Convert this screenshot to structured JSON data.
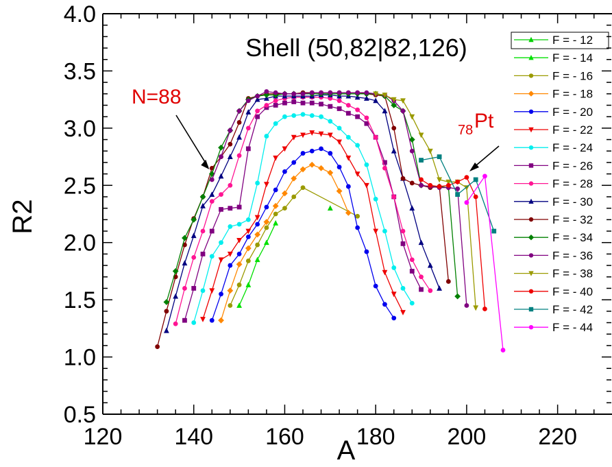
{
  "chart_data": {
    "type": "line",
    "title": "Shell (50,82|82,126)",
    "xlabel": "A",
    "ylabel": "R2",
    "xlim": [
      120,
      230
    ],
    "ylim": [
      0.5,
      4.0
    ],
    "xticks": [
      120,
      140,
      160,
      180,
      200,
      220
    ],
    "yticks": [
      0.5,
      1.0,
      1.5,
      2.0,
      2.5,
      3.0,
      3.5,
      4.0
    ],
    "xtick_labels": [
      "120",
      "140",
      "160",
      "180",
      "200",
      "220"
    ],
    "ytick_labels": [
      "0.5",
      "1.0",
      "1.5",
      "2.0",
      "2.5",
      "3.0",
      "3.5",
      "4.0"
    ],
    "legend_position": "right",
    "grid": false,
    "annotations": [
      {
        "text": "N=88",
        "color": "#e00000",
        "arrow_to": [
          144,
          2.58
        ]
      },
      {
        "text_sub": "78",
        "text": "Pt",
        "color": "#e00000",
        "arrow_to": [
          197,
          2.53
        ]
      }
    ],
    "series": [
      {
        "name": "F = - 12",
        "color": "#00d000",
        "marker": "triangle-up",
        "x": [
          170
        ],
        "y": [
          2.3
        ]
      },
      {
        "name": "F = - 14",
        "color": "#00e000",
        "marker": "triangle-up",
        "x": [
          150,
          152,
          154,
          156,
          158
        ],
        "y": [
          1.45,
          1.63,
          1.85,
          2.0,
          2.17
        ]
      },
      {
        "name": "F = - 16",
        "color": "#9a9a00",
        "marker": "circle",
        "x": [
          148,
          150,
          152,
          154,
          156,
          158,
          160,
          162,
          164,
          176
        ],
        "y": [
          1.45,
          1.63,
          1.84,
          1.98,
          2.13,
          2.25,
          2.3,
          2.4,
          2.48,
          2.23
        ]
      },
      {
        "name": "F = - 18",
        "color": "#ff8800",
        "marker": "diamond",
        "x": [
          146,
          148,
          150,
          152,
          154,
          156,
          158,
          160,
          162,
          164,
          166,
          168,
          170,
          172,
          174
        ],
        "y": [
          1.32,
          1.58,
          1.81,
          1.95,
          2.07,
          2.18,
          2.32,
          2.43,
          2.56,
          2.64,
          2.68,
          2.65,
          2.61,
          2.45,
          2.26
        ]
      },
      {
        "name": "F = - 20",
        "color": "#0000ee",
        "marker": "circle",
        "x": [
          144,
          146,
          148,
          150,
          152,
          154,
          156,
          158,
          160,
          162,
          164,
          166,
          168,
          170,
          172,
          174,
          176,
          178,
          180,
          182,
          184
        ],
        "y": [
          1.32,
          1.55,
          1.8,
          1.9,
          2.05,
          2.16,
          2.31,
          2.46,
          2.62,
          2.7,
          2.78,
          2.8,
          2.82,
          2.78,
          2.66,
          2.49,
          2.13,
          1.92,
          1.62,
          1.46,
          1.34
        ]
      },
      {
        "name": "F = - 22",
        "color": "#ee0000",
        "marker": "triangle-down",
        "x": [
          142,
          144,
          146,
          148,
          150,
          152,
          154,
          156,
          158,
          160,
          162,
          164,
          166,
          168,
          170,
          172,
          174,
          176,
          178,
          180,
          182,
          184,
          186
        ],
        "y": [
          1.33,
          1.58,
          1.85,
          1.9,
          2.02,
          2.1,
          2.22,
          2.51,
          2.74,
          2.82,
          2.92,
          2.94,
          2.96,
          2.95,
          2.94,
          2.88,
          2.74,
          2.6,
          2.5,
          2.1,
          1.74,
          1.55,
          1.39
        ]
      },
      {
        "name": "F = - 24",
        "color": "#00eeee",
        "marker": "circle",
        "x": [
          140,
          142,
          144,
          146,
          148,
          150,
          152,
          154,
          156,
          158,
          160,
          162,
          164,
          166,
          168,
          170,
          172,
          174,
          176,
          178,
          180,
          182,
          184,
          186,
          188
        ],
        "y": [
          1.3,
          1.58,
          1.88,
          2.0,
          2.14,
          2.16,
          2.2,
          2.52,
          2.93,
          3.04,
          3.1,
          3.11,
          3.12,
          3.11,
          3.1,
          3.06,
          3.0,
          2.92,
          2.85,
          2.68,
          2.38,
          2.1,
          1.78,
          1.6,
          1.47
        ]
      },
      {
        "name": "F = - 26",
        "color": "#800080",
        "marker": "square",
        "x": [
          138,
          140,
          142,
          144,
          146,
          148,
          150,
          152,
          154,
          156,
          158,
          160,
          162,
          164,
          166,
          168,
          170,
          172,
          174,
          176,
          178,
          180,
          182,
          184,
          186,
          188,
          190
        ],
        "y": [
          1.32,
          1.6,
          1.9,
          2.1,
          2.29,
          2.3,
          2.31,
          2.82,
          3.1,
          3.18,
          3.2,
          3.22,
          3.23,
          3.22,
          3.22,
          3.21,
          3.19,
          3.17,
          3.13,
          3.1,
          3.04,
          2.92,
          2.7,
          2.4,
          1.99,
          1.75,
          1.59
        ]
      },
      {
        "name": "F = - 28",
        "color": "#ff1493",
        "marker": "circle",
        "x": [
          136,
          138,
          140,
          142,
          144,
          146,
          148,
          150,
          152,
          154,
          156,
          158,
          160,
          162,
          164,
          166,
          168,
          170,
          172,
          174,
          176,
          178,
          180,
          182,
          184,
          186,
          188,
          190,
          192
        ],
        "y": [
          1.29,
          1.6,
          1.87,
          2.1,
          2.36,
          2.42,
          2.5,
          2.76,
          3.0,
          3.15,
          3.2,
          3.24,
          3.26,
          3.27,
          3.27,
          3.27,
          3.27,
          3.26,
          3.24,
          3.2,
          3.16,
          3.09,
          2.92,
          2.65,
          2.4,
          2.1,
          1.85,
          1.7,
          1.58
        ]
      },
      {
        "name": "F = - 30",
        "color": "#000080",
        "marker": "triangle-up",
        "x": [
          134,
          136,
          138,
          140,
          142,
          144,
          146,
          148,
          150,
          152,
          154,
          156,
          158,
          160,
          162,
          164,
          166,
          168,
          170,
          172,
          174,
          176,
          178,
          180,
          182,
          184,
          186,
          188,
          190,
          192,
          194
        ],
        "y": [
          1.23,
          1.53,
          1.82,
          2.06,
          2.32,
          2.42,
          2.58,
          2.75,
          2.92,
          3.14,
          3.25,
          3.26,
          3.28,
          3.28,
          3.28,
          3.28,
          3.28,
          3.29,
          3.29,
          3.28,
          3.28,
          3.27,
          3.26,
          3.24,
          3.15,
          2.8,
          2.56,
          2.3,
          2.0,
          1.8,
          1.6
        ]
      },
      {
        "name": "F = - 32",
        "color": "#800000",
        "marker": "circle",
        "x": [
          132,
          134,
          136,
          138,
          140,
          142,
          144,
          146,
          148,
          150,
          152,
          154,
          156,
          158,
          160,
          162,
          164,
          166,
          168,
          170,
          172,
          174,
          176,
          178,
          180,
          182,
          184,
          186,
          188,
          190,
          192,
          194,
          196
        ],
        "y": [
          1.09,
          1.4,
          1.7,
          1.98,
          2.21,
          2.4,
          2.65,
          2.75,
          2.86,
          3.05,
          3.26,
          3.28,
          3.3,
          3.3,
          3.3,
          3.3,
          3.31,
          3.31,
          3.31,
          3.31,
          3.31,
          3.31,
          3.31,
          3.3,
          3.29,
          3.28,
          3.0,
          2.56,
          2.52,
          2.5,
          2.48,
          2.49,
          1.66
        ]
      },
      {
        "name": "F = - 34",
        "color": "#008000",
        "marker": "diamond",
        "x": [
          134,
          136,
          138,
          140,
          142,
          144,
          146,
          148,
          150,
          152,
          154,
          156,
          158,
          160,
          162,
          164,
          166,
          168,
          170,
          172,
          174,
          176,
          178,
          180,
          182,
          184,
          186,
          188,
          190,
          192,
          194,
          196,
          198
        ],
        "y": [
          1.48,
          1.75,
          2.04,
          2.2,
          2.4,
          2.6,
          2.83,
          2.98,
          3.15,
          3.25,
          3.28,
          3.29,
          3.29,
          3.3,
          3.3,
          3.3,
          3.3,
          3.3,
          3.3,
          3.3,
          3.3,
          3.3,
          3.3,
          3.3,
          3.28,
          3.2,
          3.15,
          2.9,
          2.5,
          2.49,
          2.49,
          2.48,
          1.53
        ]
      },
      {
        "name": "F = - 36",
        "color": "#800080",
        "marker": "circle",
        "x": [
          144,
          146,
          148,
          150,
          152,
          154,
          156,
          158,
          160,
          162,
          164,
          166,
          168,
          170,
          172,
          174,
          176,
          178,
          180,
          182,
          184,
          186,
          188,
          190,
          192,
          194,
          196,
          198,
          200
        ],
        "y": [
          2.55,
          2.75,
          2.98,
          3.15,
          3.24,
          3.28,
          3.32,
          3.31,
          3.3,
          3.3,
          3.3,
          3.31,
          3.31,
          3.31,
          3.31,
          3.31,
          3.31,
          3.31,
          3.3,
          3.29,
          3.24,
          3.15,
          2.8,
          2.5,
          2.49,
          2.48,
          2.48,
          2.47,
          1.45
        ]
      },
      {
        "name": "F = - 38",
        "color": "#9a9a00",
        "marker": "triangle-down",
        "x": [
          180,
          182,
          184,
          186,
          188,
          190,
          192,
          194,
          196,
          198,
          200,
          202
        ],
        "y": [
          3.3,
          3.29,
          3.25,
          3.24,
          3.1,
          2.94,
          2.8,
          2.55,
          2.53,
          2.53,
          2.48,
          1.43
        ]
      },
      {
        "name": "F = - 40",
        "color": "#ee0000",
        "marker": "circle",
        "x": [
          190,
          192,
          194,
          196,
          198,
          200,
          202,
          204
        ],
        "y": [
          2.55,
          2.5,
          2.49,
          2.5,
          2.53,
          2.57,
          2.4,
          1.42
        ]
      },
      {
        "name": "F = - 42",
        "color": "#008080",
        "marker": "square",
        "x": [
          190,
          194,
          198,
          202,
          206
        ],
        "y": [
          2.72,
          2.75,
          2.42,
          2.55,
          2.1
        ]
      },
      {
        "name": "F = - 44",
        "color": "#ff00ff",
        "marker": "circle",
        "x": [
          200,
          204,
          208
        ],
        "y": [
          2.35,
          2.58,
          1.06
        ]
      }
    ]
  }
}
